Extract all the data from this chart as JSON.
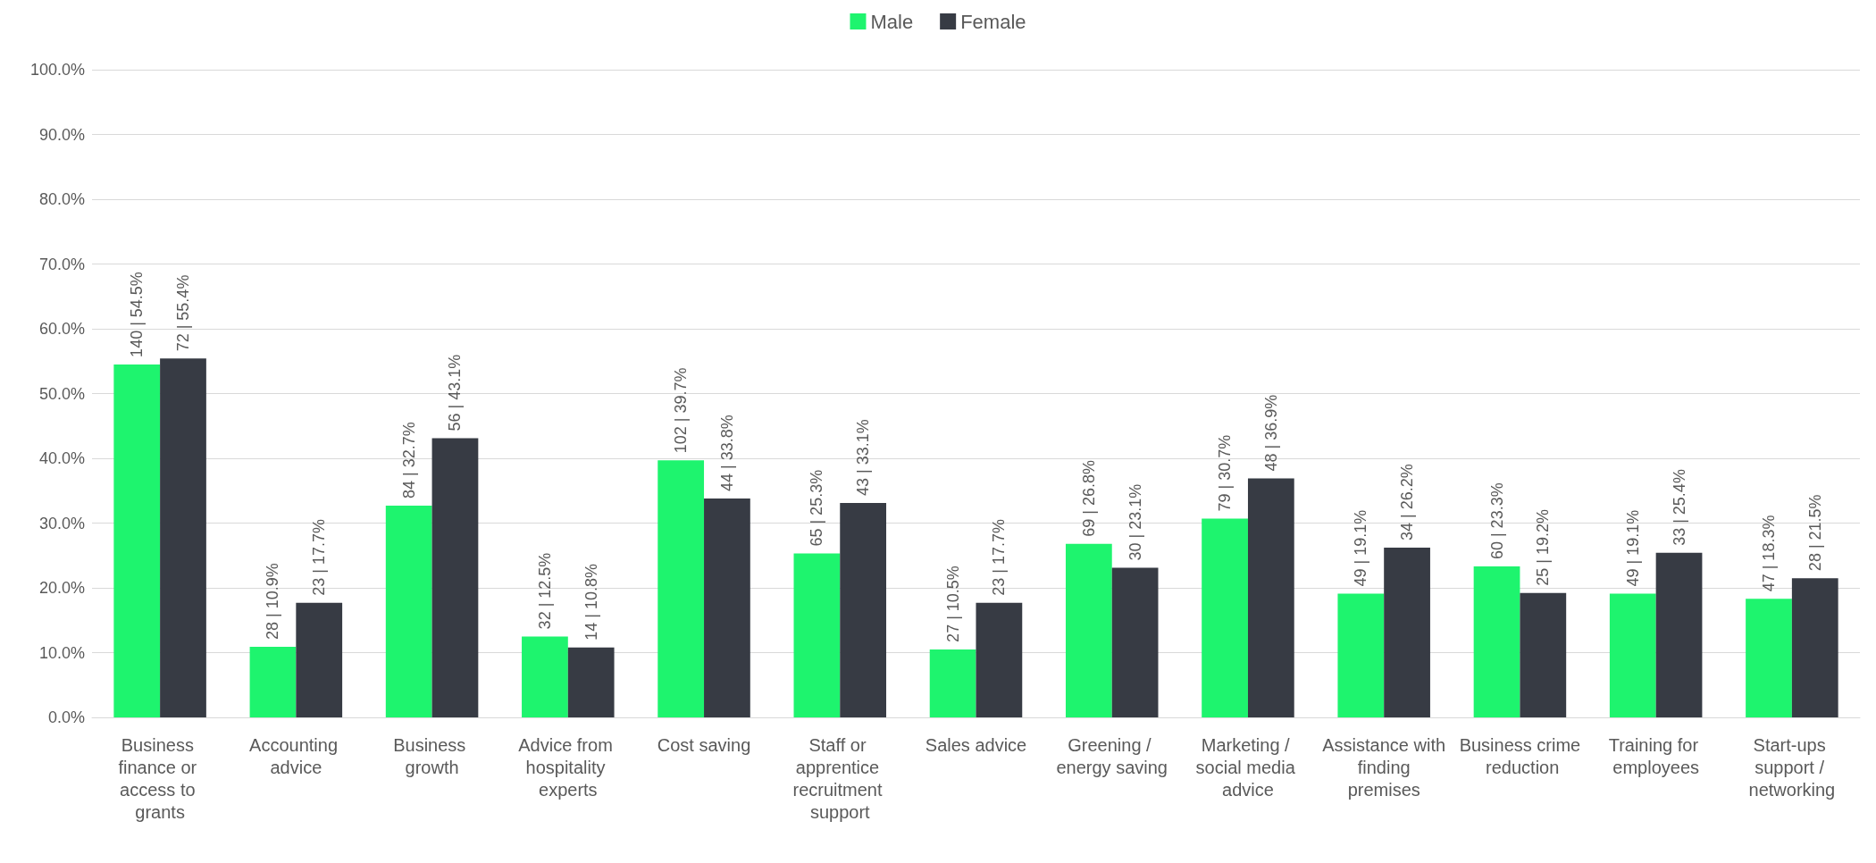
{
  "chart_data": {
    "type": "bar",
    "categories": [
      "Business finance or access to grants",
      "Accounting advice",
      "Business growth",
      "Advice from hospitality experts",
      "Cost saving",
      "Staff or apprentice recruitment support",
      "Sales advice",
      "Greening / energy saving",
      "Marketing / social media advice",
      "Assistance with finding premises",
      "Business crime reduction",
      "Training for employees",
      "Start-ups support / networking"
    ],
    "series": [
      {
        "name": "Male",
        "color": "#1ef46e",
        "values": [
          54.5,
          10.9,
          32.7,
          12.5,
          39.7,
          25.3,
          10.5,
          26.8,
          30.7,
          19.1,
          23.3,
          19.1,
          18.3
        ],
        "value_labels": [
          "140 | 54.5%",
          "28 | 10.9%",
          "84 | 32.7%",
          "32 | 12.5%",
          "102 | 39.7%",
          "65 | 25.3%",
          "27 | 10.5%",
          "69 | 26.8%",
          "79 | 30.7%",
          "49 | 19.1%",
          "60 | 23.3%",
          "49 | 19.1%",
          "47 | 18.3%"
        ]
      },
      {
        "name": "Female",
        "color": "#373b44",
        "values": [
          55.4,
          17.7,
          43.1,
          10.8,
          33.8,
          33.1,
          17.7,
          23.1,
          36.9,
          26.2,
          19.2,
          25.4,
          21.5
        ],
        "value_labels": [
          "72 | 55.4%",
          "23 | 17.7%",
          "56 | 43.1%",
          "14 | 10.8%",
          "44 | 33.8%",
          "43 | 33.1%",
          "23 | 17.7%",
          "30 | 23.1%",
          "48 | 36.9%",
          "34 | 26.2%",
          "25 | 19.2%",
          "33 | 25.4%",
          "28 | 21.5%"
        ]
      }
    ],
    "ylim": [
      0,
      100
    ],
    "yticks": [
      {
        "value": 0,
        "label": "0.0%"
      },
      {
        "value": 10,
        "label": "10.0%"
      },
      {
        "value": 20,
        "label": "20.0%"
      },
      {
        "value": 30,
        "label": "30.0%"
      },
      {
        "value": 40,
        "label": "40.0%"
      },
      {
        "value": 50,
        "label": "50.0%"
      },
      {
        "value": 60,
        "label": "60.0%"
      },
      {
        "value": 70,
        "label": "70.0%"
      },
      {
        "value": 80,
        "label": "80.0%"
      },
      {
        "value": 90,
        "label": "90.0%"
      },
      {
        "value": 100,
        "label": "100.0%"
      }
    ],
    "grid": "y",
    "legend": "top"
  }
}
